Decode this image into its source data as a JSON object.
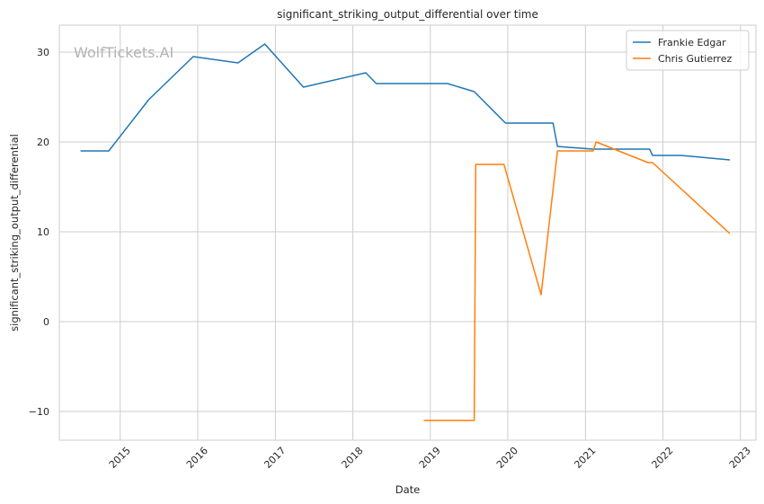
{
  "chart_data": {
    "type": "line",
    "title": "significant_striking_output_differential over time",
    "xlabel": "Date",
    "ylabel": "significant_striking_output_differential",
    "watermark": "WolfTickets.AI",
    "xlim": [
      "2014-03-20",
      "2023-03-15"
    ],
    "ylim": [
      -13.2,
      33.0
    ],
    "x_ticks": [
      "2015-01-01",
      "2016-01-01",
      "2017-01-01",
      "2018-01-01",
      "2019-01-01",
      "2020-01-01",
      "2021-01-01",
      "2022-01-01",
      "2023-01-01"
    ],
    "x_tick_labels": [
      "2015",
      "2016",
      "2017",
      "2018",
      "2019",
      "2020",
      "2021",
      "2022",
      "2023"
    ],
    "y_ticks": [
      -10,
      0,
      10,
      20,
      30
    ],
    "y_tick_labels": [
      "−10",
      "0",
      "10",
      "20",
      "30"
    ],
    "grid": true,
    "legend_position": "top-right",
    "series": [
      {
        "name": "Frankie Edgar",
        "color": "#1f77b4",
        "x": [
          "2014-06-28",
          "2014-11-08",
          "2015-05-15",
          "2015-12-11",
          "2016-07-09",
          "2016-11-12",
          "2017-05-13",
          "2018-03-03",
          "2018-04-21",
          "2019-03-23",
          "2019-07-27",
          "2019-12-21",
          "2020-08-01",
          "2020-08-22",
          "2021-02-06",
          "2021-10-30",
          "2021-11-13",
          "2022-03-26",
          "2022-11-12"
        ],
        "y": [
          19.0,
          19.0,
          24.7,
          29.5,
          28.8,
          30.9,
          26.1,
          27.7,
          26.5,
          26.5,
          25.6,
          22.1,
          22.1,
          19.5,
          19.2,
          19.2,
          18.5,
          18.5,
          18.0
        ]
      },
      {
        "name": "Chris Gutierrez",
        "color": "#ff7f0e",
        "x": [
          "2018-12-01",
          "2019-07-27",
          "2019-08-03",
          "2019-12-14",
          "2020-06-06",
          "2020-08-22",
          "2021-02-06",
          "2021-02-20",
          "2021-10-23",
          "2021-11-13",
          "2022-11-12"
        ],
        "y": [
          -11.0,
          -11.0,
          17.5,
          17.5,
          3.0,
          19.0,
          19.0,
          20.0,
          17.7,
          17.7,
          9.8
        ]
      }
    ]
  }
}
